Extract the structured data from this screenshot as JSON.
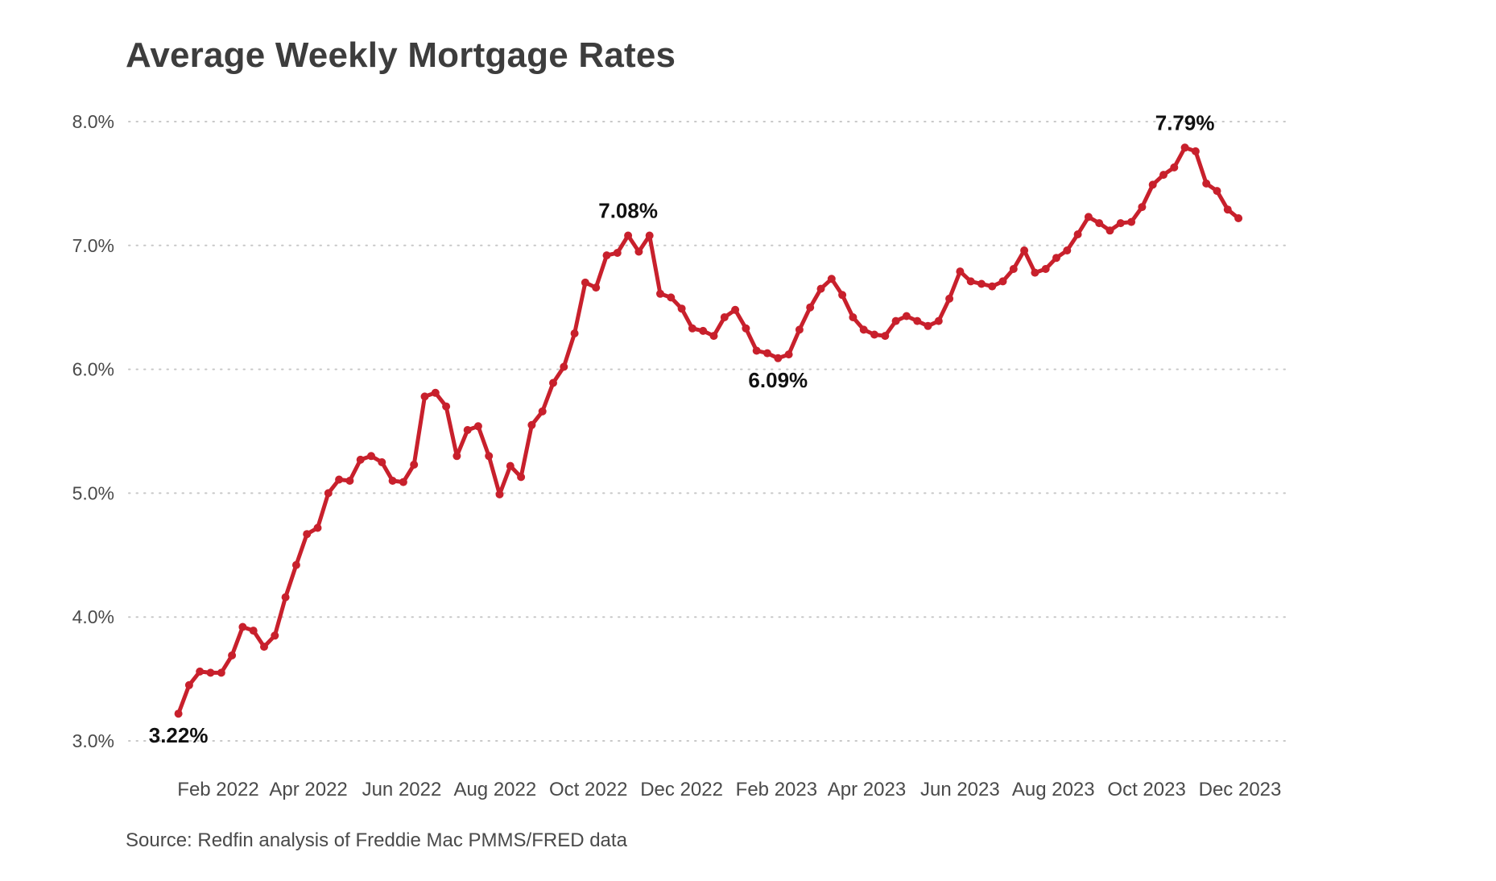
{
  "title": "Average Weekly Mortgage Rates",
  "source": "Source: Redfin analysis of Freddie Mac PMMS/FRED data",
  "colors": {
    "line": "#c8202c",
    "grid": "#c8c8c8",
    "text": "#3d3d3d"
  },
  "chart_data": {
    "type": "line",
    "title": "Average Weekly Mortgage Rates",
    "xlabel": "",
    "ylabel": "",
    "ylim": [
      3.0,
      8.0
    ],
    "xlim": [
      "2022-01-01",
      "2023-12-31"
    ],
    "y_ticks": [
      {
        "value": 3.0,
        "label": "3.0%"
      },
      {
        "value": 4.0,
        "label": "4.0%"
      },
      {
        "value": 5.0,
        "label": "5.0%"
      },
      {
        "value": 6.0,
        "label": "6.0%"
      },
      {
        "value": 7.0,
        "label": "7.0%"
      },
      {
        "value": 8.0,
        "label": "8.0%"
      }
    ],
    "x_ticks": [
      {
        "date": "2022-02-01",
        "label": "Feb 2022"
      },
      {
        "date": "2022-04-01",
        "label": "Apr 2022"
      },
      {
        "date": "2022-06-01",
        "label": "Jun 2022"
      },
      {
        "date": "2022-08-01",
        "label": "Aug 2022"
      },
      {
        "date": "2022-10-01",
        "label": "Oct 2022"
      },
      {
        "date": "2022-12-01",
        "label": "Dec 2022"
      },
      {
        "date": "2023-02-01",
        "label": "Feb 2023"
      },
      {
        "date": "2023-04-01",
        "label": "Apr 2023"
      },
      {
        "date": "2023-06-01",
        "label": "Jun 2023"
      },
      {
        "date": "2023-08-01",
        "label": "Aug 2023"
      },
      {
        "date": "2023-10-01",
        "label": "Oct 2023"
      },
      {
        "date": "2023-12-01",
        "label": "Dec 2023"
      }
    ],
    "grid": "horizontal dotted",
    "legend": "none",
    "series": [
      {
        "values": [
          [
            "2022-01-06",
            3.22
          ],
          [
            "2022-01-13",
            3.45
          ],
          [
            "2022-01-20",
            3.56
          ],
          [
            "2022-01-27",
            3.55
          ],
          [
            "2022-02-03",
            3.55
          ],
          [
            "2022-02-10",
            3.69
          ],
          [
            "2022-02-17",
            3.92
          ],
          [
            "2022-02-24",
            3.89
          ],
          [
            "2022-03-03",
            3.76
          ],
          [
            "2022-03-10",
            3.85
          ],
          [
            "2022-03-17",
            4.16
          ],
          [
            "2022-03-24",
            4.42
          ],
          [
            "2022-03-31",
            4.67
          ],
          [
            "2022-04-07",
            4.72
          ],
          [
            "2022-04-14",
            5.0
          ],
          [
            "2022-04-21",
            5.11
          ],
          [
            "2022-04-28",
            5.1
          ],
          [
            "2022-05-05",
            5.27
          ],
          [
            "2022-05-12",
            5.3
          ],
          [
            "2022-05-19",
            5.25
          ],
          [
            "2022-05-26",
            5.1
          ],
          [
            "2022-06-02",
            5.09
          ],
          [
            "2022-06-09",
            5.23
          ],
          [
            "2022-06-16",
            5.78
          ],
          [
            "2022-06-23",
            5.81
          ],
          [
            "2022-06-30",
            5.7
          ],
          [
            "2022-07-07",
            5.3
          ],
          [
            "2022-07-14",
            5.51
          ],
          [
            "2022-07-21",
            5.54
          ],
          [
            "2022-07-28",
            5.3
          ],
          [
            "2022-08-04",
            4.99
          ],
          [
            "2022-08-11",
            5.22
          ],
          [
            "2022-08-18",
            5.13
          ],
          [
            "2022-08-25",
            5.55
          ],
          [
            "2022-09-01",
            5.66
          ],
          [
            "2022-09-08",
            5.89
          ],
          [
            "2022-09-15",
            6.02
          ],
          [
            "2022-09-22",
            6.29
          ],
          [
            "2022-09-29",
            6.7
          ],
          [
            "2022-10-06",
            6.66
          ],
          [
            "2022-10-13",
            6.92
          ],
          [
            "2022-10-20",
            6.94
          ],
          [
            "2022-10-27",
            7.08
          ],
          [
            "2022-11-03",
            6.95
          ],
          [
            "2022-11-10",
            7.08
          ],
          [
            "2022-11-17",
            6.61
          ],
          [
            "2022-11-24",
            6.58
          ],
          [
            "2022-12-01",
            6.49
          ],
          [
            "2022-12-08",
            6.33
          ],
          [
            "2022-12-15",
            6.31
          ],
          [
            "2022-12-22",
            6.27
          ],
          [
            "2022-12-29",
            6.42
          ],
          [
            "2023-01-05",
            6.48
          ],
          [
            "2023-01-12",
            6.33
          ],
          [
            "2023-01-19",
            6.15
          ],
          [
            "2023-01-26",
            6.13
          ],
          [
            "2023-02-02",
            6.09
          ],
          [
            "2023-02-09",
            6.12
          ],
          [
            "2023-02-16",
            6.32
          ],
          [
            "2023-02-23",
            6.5
          ],
          [
            "2023-03-02",
            6.65
          ],
          [
            "2023-03-09",
            6.73
          ],
          [
            "2023-03-16",
            6.6
          ],
          [
            "2023-03-23",
            6.42
          ],
          [
            "2023-03-30",
            6.32
          ],
          [
            "2023-04-06",
            6.28
          ],
          [
            "2023-04-13",
            6.27
          ],
          [
            "2023-04-20",
            6.39
          ],
          [
            "2023-04-27",
            6.43
          ],
          [
            "2023-05-04",
            6.39
          ],
          [
            "2023-05-11",
            6.35
          ],
          [
            "2023-05-18",
            6.39
          ],
          [
            "2023-05-25",
            6.57
          ],
          [
            "2023-06-01",
            6.79
          ],
          [
            "2023-06-08",
            6.71
          ],
          [
            "2023-06-15",
            6.69
          ],
          [
            "2023-06-22",
            6.67
          ],
          [
            "2023-06-29",
            6.71
          ],
          [
            "2023-07-06",
            6.81
          ],
          [
            "2023-07-13",
            6.96
          ],
          [
            "2023-07-20",
            6.78
          ],
          [
            "2023-07-27",
            6.81
          ],
          [
            "2023-08-03",
            6.9
          ],
          [
            "2023-08-10",
            6.96
          ],
          [
            "2023-08-17",
            7.09
          ],
          [
            "2023-08-24",
            7.23
          ],
          [
            "2023-08-31",
            7.18
          ],
          [
            "2023-09-07",
            7.12
          ],
          [
            "2023-09-14",
            7.18
          ],
          [
            "2023-09-21",
            7.19
          ],
          [
            "2023-09-28",
            7.31
          ],
          [
            "2023-10-05",
            7.49
          ],
          [
            "2023-10-12",
            7.57
          ],
          [
            "2023-10-19",
            7.63
          ],
          [
            "2023-10-26",
            7.79
          ],
          [
            "2023-11-02",
            7.76
          ],
          [
            "2023-11-09",
            7.5
          ],
          [
            "2023-11-16",
            7.44
          ],
          [
            "2023-11-23",
            7.29
          ],
          [
            "2023-11-30",
            7.22
          ]
        ]
      }
    ],
    "annotations": [
      {
        "date": "2022-01-06",
        "value": 3.22,
        "label": "3.22%",
        "position": "below"
      },
      {
        "date": "2022-10-27",
        "value": 7.08,
        "label": "7.08%",
        "position": "above"
      },
      {
        "date": "2023-02-02",
        "value": 6.09,
        "label": "6.09%",
        "position": "below"
      },
      {
        "date": "2023-10-26",
        "value": 7.79,
        "label": "7.79%",
        "position": "above"
      }
    ]
  }
}
